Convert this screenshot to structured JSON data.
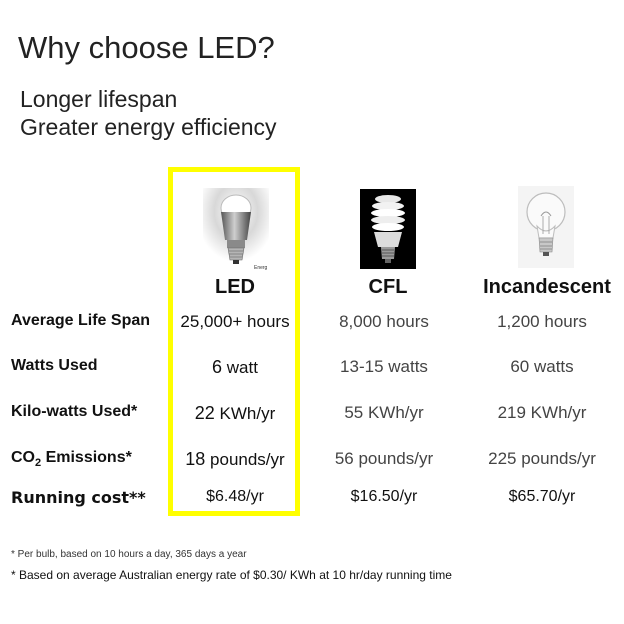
{
  "title": "Why choose LED?",
  "subtitles": [
    "Longer lifespan",
    "Greater energy efficiency"
  ],
  "columns": [
    "LED",
    "CFL",
    "Incandescent"
  ],
  "led_bulb_mark": "Energ",
  "rows": [
    {
      "label": "Average Life Span",
      "led": "25,000+ hours",
      "cfl": "8,000 hours",
      "inc": "1,200 hours"
    },
    {
      "label": "Watts Used",
      "led_num": "6",
      "led_unit": " watt",
      "cfl": "13-15 watts",
      "inc": "60 watts"
    },
    {
      "label": "Kilo-watts Used*",
      "led_num": "22",
      "led_unit": " KWh/yr",
      "cfl": "55 KWh/yr",
      "inc": "219 KWh/yr"
    },
    {
      "label_pre": "CO",
      "label_sub": "2",
      "label_post": " Emissions*",
      "led_num": "18",
      "led_unit": " pounds/yr",
      "cfl": "56 pounds/yr",
      "inc": "225 pounds/yr"
    },
    {
      "label": "Running cost**",
      "led_pre": "$",
      "led_num": "6.48",
      "led_unit": "/yr",
      "cfl": "$16.50/yr",
      "inc": "$65.70/yr"
    }
  ],
  "footnotes": [
    "* Per bulb, based on 10 hours a day, 365 days a year",
    "* Based on average Australian energy rate of $0.30/ KWh at 10 hr/day running time"
  ],
  "colors": {
    "highlight_border": "#ffff00"
  }
}
